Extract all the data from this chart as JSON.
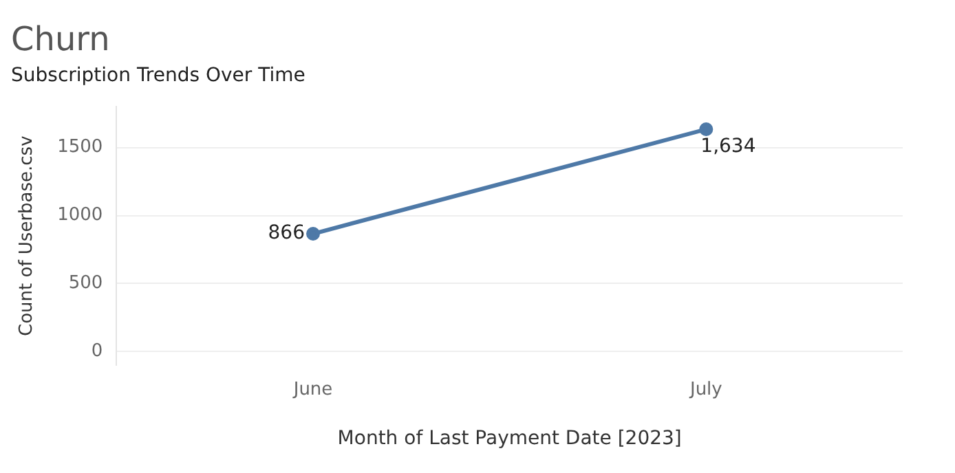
{
  "chart_data": {
    "type": "line",
    "title": "Churn",
    "subtitle": "Subscription Trends Over Time",
    "xlabel": "Month of Last Payment Date [2023]",
    "ylabel": "Count of Userbase.csv",
    "categories": [
      "June",
      "July"
    ],
    "series": [
      {
        "color": "#4e79a7",
        "values": [
          866,
          1634
        ],
        "value_labels": [
          "866",
          "1,634"
        ]
      }
    ],
    "ylim": [
      -100,
      1800
    ],
    "yticks": [
      0,
      500,
      1000,
      1500
    ],
    "grid": "y",
    "legend": false,
    "marker": "circle",
    "line_style": "solid"
  }
}
